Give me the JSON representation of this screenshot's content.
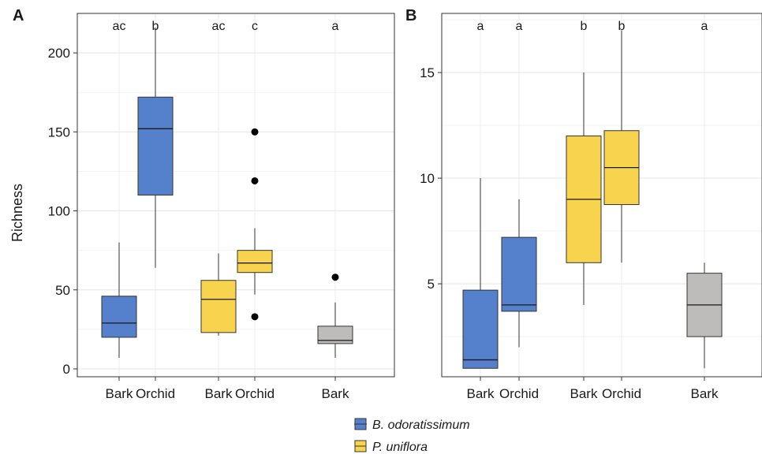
{
  "colors": {
    "B. odoratissimum": "#5580cc",
    "P. uniflora": "#f8d44e",
    "bark": "#bdbcbb",
    "grid": "#ebebeb",
    "frame": "#333333"
  },
  "legend": {
    "entries": [
      {
        "name": "B. odoratissimum",
        "color": "#5580cc"
      },
      {
        "name": "P. uniflora",
        "color": "#f8d44e"
      }
    ],
    "position": "bottom"
  },
  "chart_data": [
    {
      "type": "box",
      "panel": "A",
      "ylabel": "Richness",
      "xlabel": "",
      "ylim": [
        -5,
        225
      ],
      "yticks": [
        0,
        50,
        100,
        150,
        200
      ],
      "grid": true,
      "categories": [
        "Bark",
        "Orchid",
        "Bark",
        "Orchid",
        "Bark"
      ],
      "boxes": [
        {
          "category": "Bark",
          "group": "B. odoratissimum",
          "whisker_low": 7,
          "q1": 20,
          "median": 29,
          "q3": 46,
          "whisker_high": 80,
          "outliers": [],
          "letter": "ac",
          "color": "#5580cc"
        },
        {
          "category": "Orchid",
          "group": "B. odoratissimum",
          "whisker_low": 64,
          "q1": 110,
          "median": 152,
          "q3": 172,
          "whisker_high": 216,
          "outliers": [],
          "letter": "b",
          "color": "#5580cc"
        },
        {
          "category": "Bark",
          "group": "P. uniflora",
          "whisker_low": 21,
          "q1": 23,
          "median": 44,
          "q3": 56,
          "whisker_high": 73,
          "outliers": [],
          "letter": "ac",
          "color": "#f8d44e"
        },
        {
          "category": "Orchid",
          "group": "P. uniflora",
          "whisker_low": 47,
          "q1": 61,
          "median": 67,
          "q3": 75,
          "whisker_high": 89,
          "outliers": [
            150,
            119,
            33
          ],
          "letter": "c",
          "color": "#f8d44e"
        },
        {
          "category": "Bark",
          "group": "",
          "whisker_low": 7,
          "q1": 16,
          "median": 18,
          "q3": 27,
          "whisker_high": 42,
          "outliers": [
            58
          ],
          "letter": "a",
          "color": "#bdbcbb"
        }
      ]
    },
    {
      "type": "box",
      "panel": "B",
      "ylabel": "",
      "xlabel": "",
      "ylim": [
        0.6,
        17.8
      ],
      "yticks": [
        5,
        10,
        15
      ],
      "grid": true,
      "categories": [
        "Bark",
        "Orchid",
        "Bark",
        "Orchid",
        "Bark"
      ],
      "boxes": [
        {
          "category": "Bark",
          "group": "B. odoratissimum",
          "whisker_low": 1,
          "q1": 1,
          "median": 1.4,
          "q3": 4.7,
          "whisker_high": 10,
          "outliers": [],
          "letter": "a",
          "color": "#5580cc"
        },
        {
          "category": "Orchid",
          "group": "B. odoratissimum",
          "whisker_low": 2,
          "q1": 3.7,
          "median": 4,
          "q3": 7.2,
          "whisker_high": 9,
          "outliers": [],
          "letter": "a",
          "color": "#5580cc"
        },
        {
          "category": "Bark",
          "group": "P. uniflora",
          "whisker_low": 4,
          "q1": 6,
          "median": 9,
          "q3": 12,
          "whisker_high": 15,
          "outliers": [],
          "letter": "b",
          "color": "#f8d44e"
        },
        {
          "category": "Orchid",
          "group": "P. uniflora",
          "whisker_low": 6,
          "q1": 8.75,
          "median": 10.5,
          "q3": 12.25,
          "whisker_high": 17,
          "outliers": [],
          "letter": "b",
          "color": "#f8d44e"
        },
        {
          "category": "Bark",
          "group": "",
          "whisker_low": 1,
          "q1": 2.5,
          "median": 4,
          "q3": 5.5,
          "whisker_high": 6,
          "outliers": [],
          "letter": "a",
          "color": "#bdbcbb"
        }
      ]
    }
  ]
}
